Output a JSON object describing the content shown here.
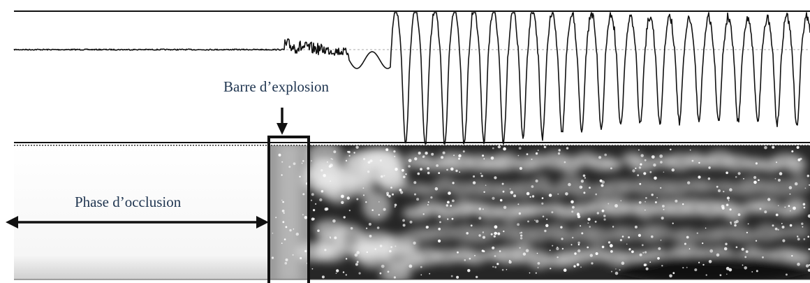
{
  "annotations": {
    "burst_label": "Barre d’explosion",
    "occlusion_label": "Phase d’occlusion"
  },
  "colors": {
    "label_text": "#1f3550",
    "waveform": "#111111",
    "spectrogram_dark": "#0a0a0a",
    "spectrogram_light": "#f2f2f2"
  },
  "panels": [
    "waveform",
    "spectrogram"
  ],
  "icons": [
    "down-arrow-icon",
    "double-headed-arrow-icon"
  ]
}
